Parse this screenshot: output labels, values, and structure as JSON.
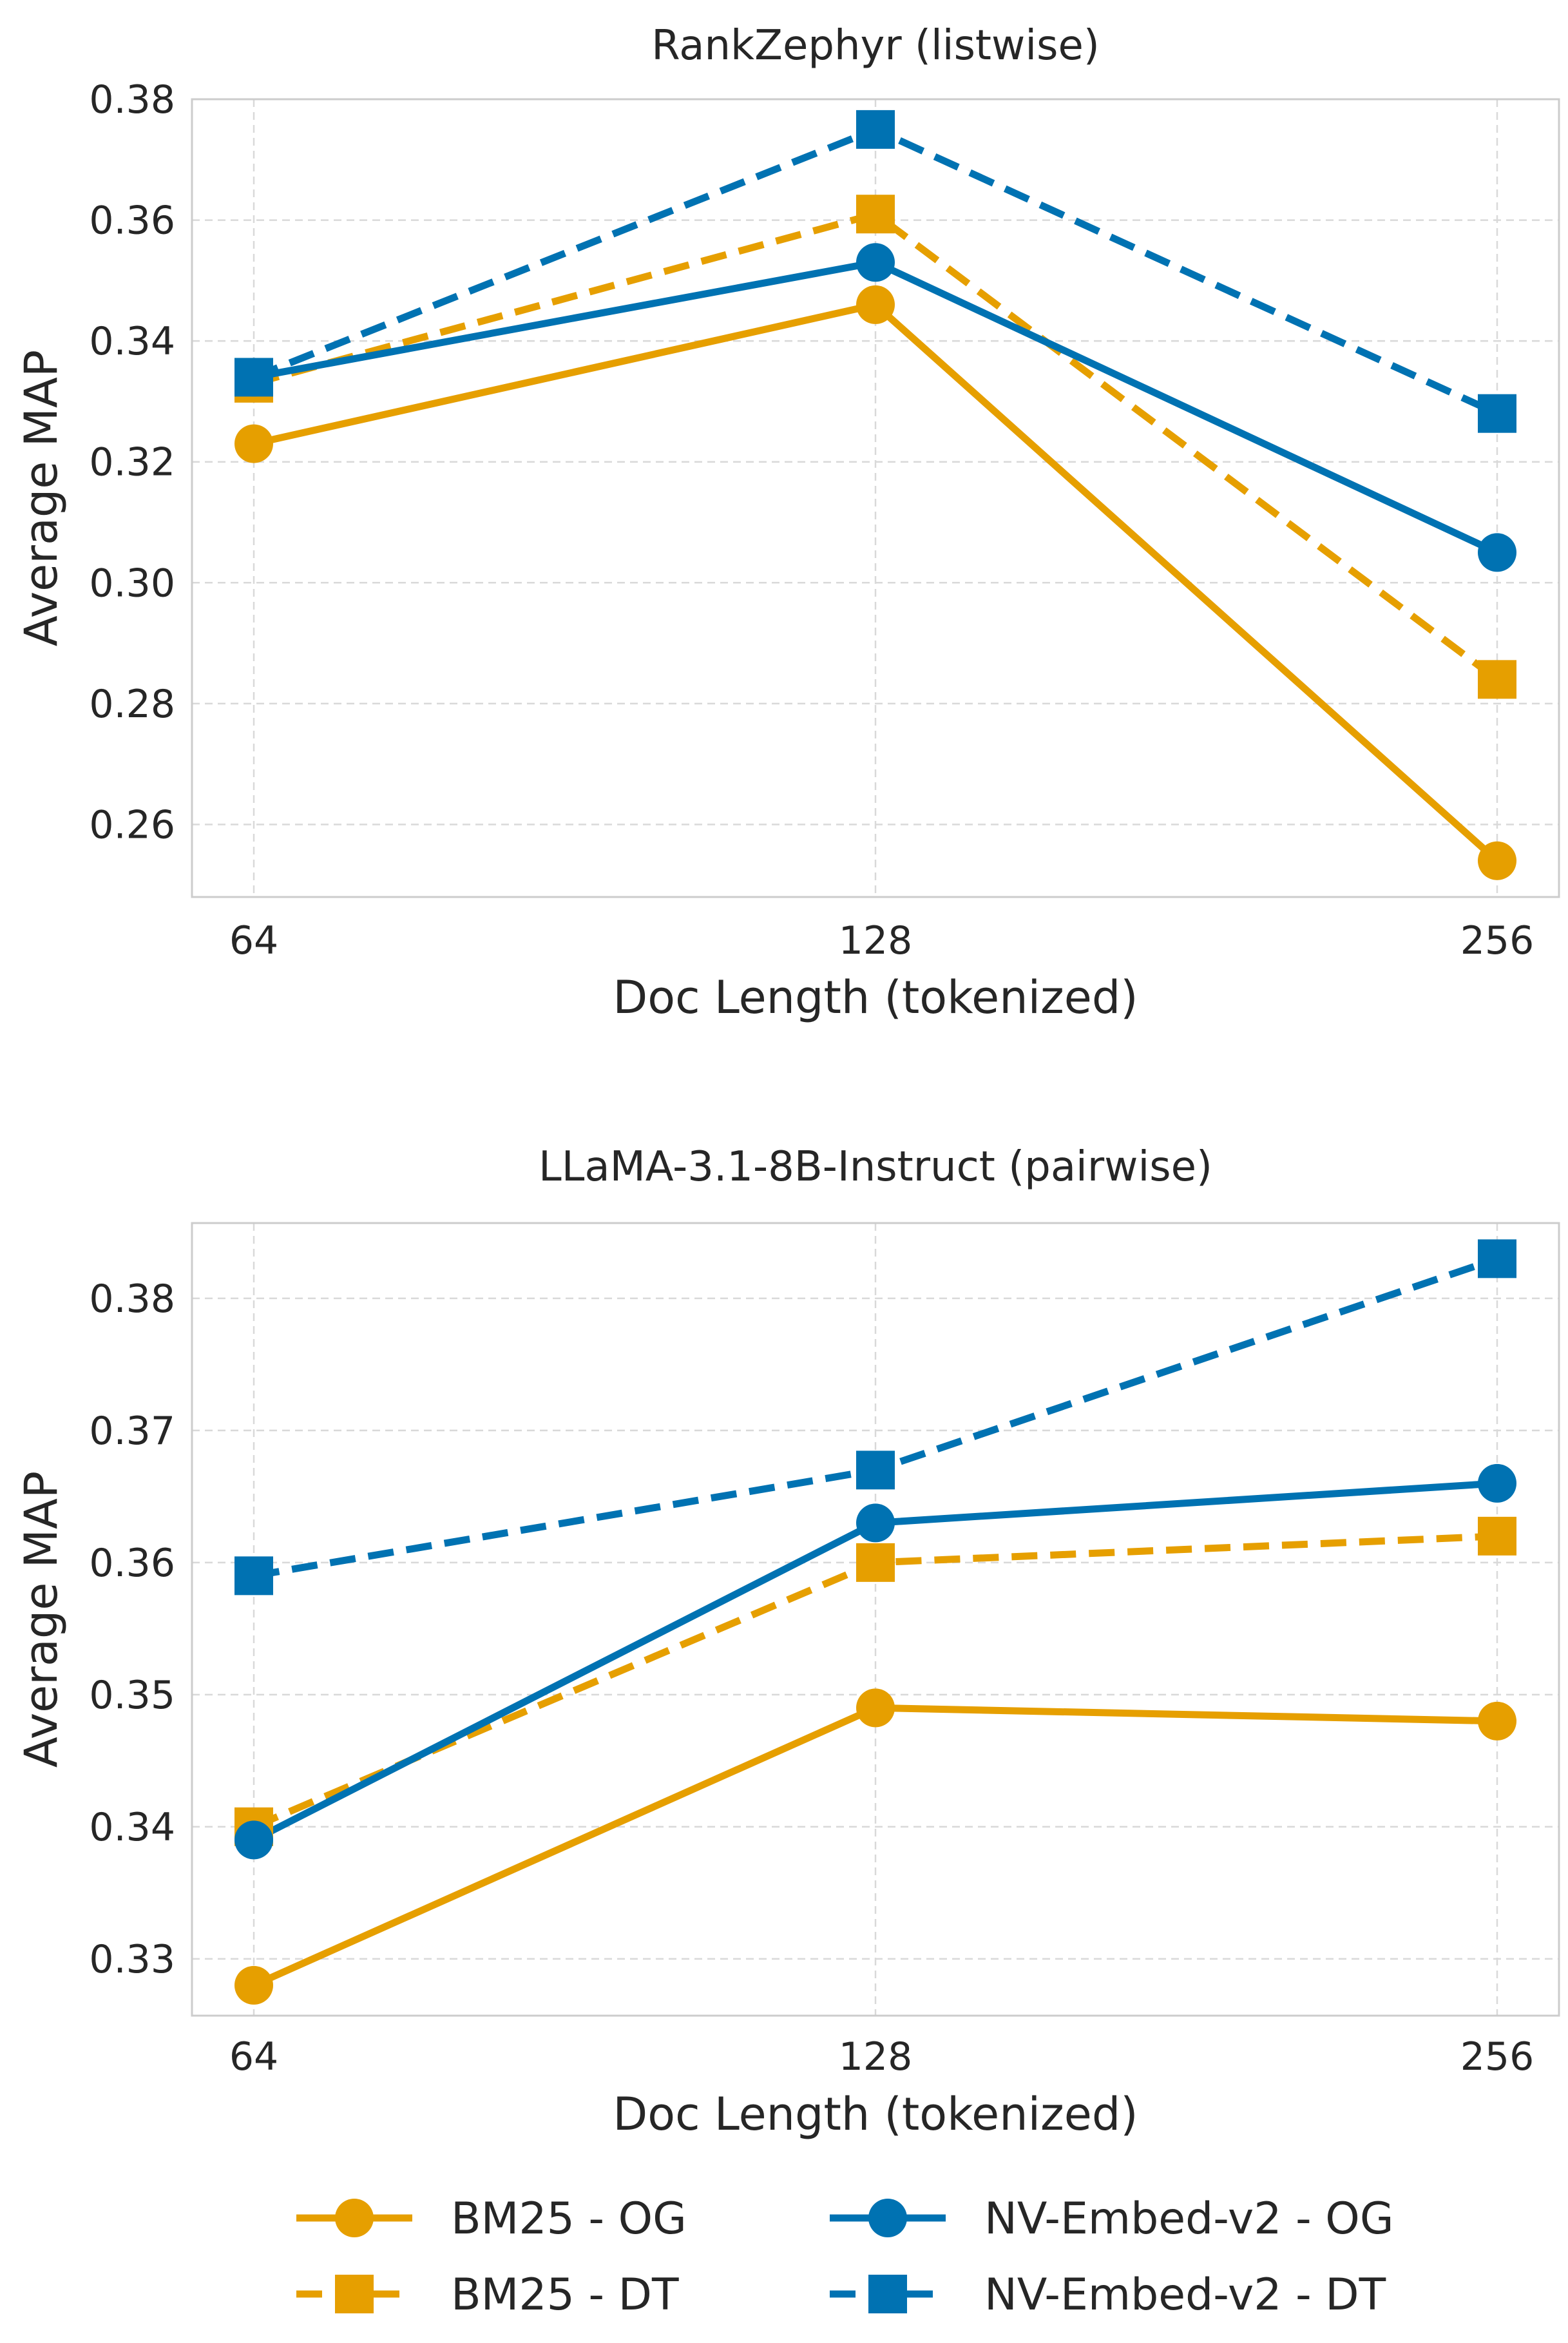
{
  "chart_data": [
    {
      "type": "line",
      "title": "RankZephyr (listwise)",
      "xlabel": "Doc Length (tokenized)",
      "ylabel": "Average MAP",
      "categories": [
        "64",
        "128",
        "256"
      ],
      "ylim": [
        0.248,
        0.38
      ],
      "yticks": [
        "0.26",
        "0.28",
        "0.30",
        "0.32",
        "0.34",
        "0.36",
        "0.38"
      ],
      "grid": true,
      "series": [
        {
          "name": "BM25 - OG",
          "values": [
            0.323,
            0.346,
            0.254
          ]
        },
        {
          "name": "BM25 - DT",
          "values": [
            0.333,
            0.361,
            0.284
          ]
        },
        {
          "name": "NV-Embed-v2 - OG",
          "values": [
            0.334,
            0.353,
            0.305
          ]
        },
        {
          "name": "NV-Embed-v2 - DT",
          "values": [
            0.334,
            0.375,
            0.328
          ]
        }
      ]
    },
    {
      "type": "line",
      "title": "LLaMA-3.1-8B-Instruct (pairwise)",
      "xlabel": "Doc Length (tokenized)",
      "ylabel": "Average MAP",
      "categories": [
        "64",
        "128",
        "256"
      ],
      "ylim": [
        0.3257,
        0.3857
      ],
      "yticks": [
        "0.33",
        "0.34",
        "0.35",
        "0.36",
        "0.37",
        "0.38"
      ],
      "grid": true,
      "series": [
        {
          "name": "BM25 - OG",
          "values": [
            0.328,
            0.349,
            0.348
          ]
        },
        {
          "name": "BM25 - DT",
          "values": [
            0.34,
            0.36,
            0.362
          ]
        },
        {
          "name": "NV-Embed-v2 - OG",
          "values": [
            0.339,
            0.363,
            0.366
          ]
        },
        {
          "name": "NV-Embed-v2 - DT",
          "values": [
            0.359,
            0.367,
            0.383
          ]
        }
      ]
    }
  ],
  "legend": {
    "position": "bottom",
    "columns": 2,
    "items": [
      {
        "label": "BM25 - OG",
        "color": "#E69F00",
        "dashed": false,
        "marker": "circle"
      },
      {
        "label": "BM25 - DT",
        "color": "#E69F00",
        "dashed": true,
        "marker": "square"
      },
      {
        "label": "NV-Embed-v2 - OG",
        "color": "#0072B2",
        "dashed": false,
        "marker": "circle"
      },
      {
        "label": "NV-Embed-v2 - DT",
        "color": "#0072B2",
        "dashed": true,
        "marker": "square"
      }
    ]
  },
  "colors": {
    "bm25": "#E69F00",
    "nvembed": "#0072B2"
  }
}
